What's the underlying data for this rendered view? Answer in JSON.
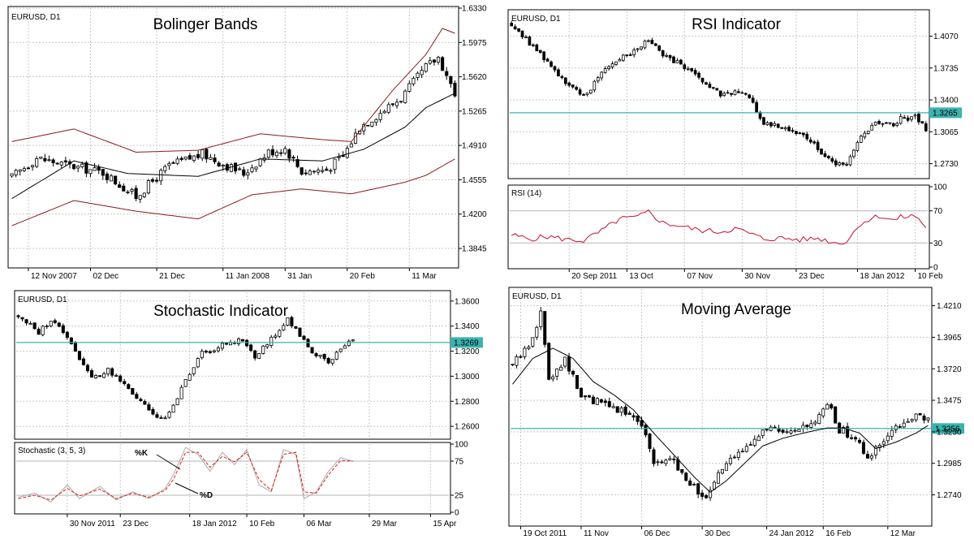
{
  "chart_data": [
    {
      "type": "candlestick",
      "title": "Bolinger Bands",
      "symbol": "EURUSD, D1",
      "y_ticks": [
        "1.6330",
        "1.5975",
        "1.5620",
        "1.5265",
        "1.4910",
        "1.4555",
        "1.4200",
        "1.3845"
      ],
      "ylim": [
        1.366,
        1.633
      ],
      "x_ticks": [
        "12 Nov 2007",
        "02 Dec",
        "21 Dec",
        "11 Jan 2008",
        "31 Jan",
        "20 Feb",
        "11 Mar"
      ],
      "x_tick_index": [
        4,
        19,
        35,
        51,
        66,
        81,
        96
      ],
      "n_bars": 108,
      "close_anchors": [
        [
          0,
          1.458
        ],
        [
          6,
          1.478
        ],
        [
          14,
          1.47
        ],
        [
          22,
          1.463
        ],
        [
          30,
          1.438
        ],
        [
          38,
          1.47
        ],
        [
          46,
          1.482
        ],
        [
          52,
          1.47
        ],
        [
          56,
          1.462
        ],
        [
          62,
          1.484
        ],
        [
          66,
          1.488
        ],
        [
          70,
          1.464
        ],
        [
          76,
          1.466
        ],
        [
          80,
          1.48
        ],
        [
          84,
          1.51
        ],
        [
          88,
          1.522
        ],
        [
          94,
          1.54
        ],
        [
          100,
          1.572
        ],
        [
          103,
          1.582
        ],
        [
          107,
          1.545
        ]
      ],
      "middle_band": [
        [
          0,
          1.436
        ],
        [
          15,
          1.475
        ],
        [
          28,
          1.462
        ],
        [
          45,
          1.459
        ],
        [
          60,
          1.477
        ],
        [
          75,
          1.475
        ],
        [
          85,
          1.487
        ],
        [
          95,
          1.51
        ],
        [
          100,
          1.53
        ],
        [
          107,
          1.545
        ]
      ],
      "upper_band": [
        [
          0,
          1.495
        ],
        [
          15,
          1.508
        ],
        [
          30,
          1.484
        ],
        [
          45,
          1.486
        ],
        [
          60,
          1.503
        ],
        [
          75,
          1.497
        ],
        [
          82,
          1.495
        ],
        [
          92,
          1.548
        ],
        [
          100,
          1.585
        ],
        [
          104,
          1.612
        ],
        [
          107,
          1.607
        ]
      ],
      "lower_band": [
        [
          0,
          1.408
        ],
        [
          15,
          1.434
        ],
        [
          30,
          1.423
        ],
        [
          45,
          1.415
        ],
        [
          58,
          1.44
        ],
        [
          70,
          1.446
        ],
        [
          82,
          1.441
        ],
        [
          95,
          1.453
        ],
        [
          100,
          1.46
        ],
        [
          107,
          1.477
        ]
      ]
    },
    {
      "type": "candlestick",
      "title": "RSI Indicator",
      "symbol": "EURUSD, D1",
      "y_ticks": [
        "1.4070",
        "1.3735",
        "1.3400",
        "1.3065",
        "1.2730"
      ],
      "ylim": [
        1.259,
        1.433
      ],
      "current_price": "1.3265",
      "x_ticks": [
        "20 Sep 2011",
        "13 Oct",
        "07 Nov",
        "30 Nov",
        "23 Dec",
        "18 Jan 2012",
        "10 Feb"
      ],
      "x_tick_index": [
        16,
        32,
        48,
        64,
        79,
        96,
        112
      ],
      "n_bars": 116,
      "close_anchors": [
        [
          0,
          1.42
        ],
        [
          5,
          1.4
        ],
        [
          10,
          1.38
        ],
        [
          16,
          1.355
        ],
        [
          20,
          1.342
        ],
        [
          25,
          1.37
        ],
        [
          30,
          1.385
        ],
        [
          35,
          1.392
        ],
        [
          38,
          1.405
        ],
        [
          42,
          1.385
        ],
        [
          46,
          1.38
        ],
        [
          52,
          1.362
        ],
        [
          58,
          1.345
        ],
        [
          62,
          1.348
        ],
        [
          66,
          1.344
        ],
        [
          70,
          1.315
        ],
        [
          75,
          1.312
        ],
        [
          80,
          1.305
        ],
        [
          85,
          1.29
        ],
        [
          90,
          1.27
        ],
        [
          93,
          1.275
        ],
        [
          97,
          1.3
        ],
        [
          102,
          1.318
        ],
        [
          106,
          1.312
        ],
        [
          108,
          1.32
        ],
        [
          112,
          1.322
        ],
        [
          115,
          1.31
        ]
      ],
      "rsi": {
        "label": "RSI (14)",
        "y_ticks": [
          "100",
          "70",
          "30",
          "0"
        ],
        "levels": [
          70,
          30
        ],
        "series": [
          [
            0,
            40
          ],
          [
            5,
            35
          ],
          [
            10,
            38
          ],
          [
            16,
            34
          ],
          [
            20,
            33
          ],
          [
            25,
            45
          ],
          [
            30,
            60
          ],
          [
            35,
            62
          ],
          [
            38,
            69
          ],
          [
            42,
            55
          ],
          [
            46,
            52
          ],
          [
            52,
            46
          ],
          [
            58,
            44
          ],
          [
            62,
            48
          ],
          [
            66,
            42
          ],
          [
            70,
            35
          ],
          [
            75,
            36
          ],
          [
            80,
            34
          ],
          [
            85,
            36
          ],
          [
            90,
            30
          ],
          [
            93,
            32
          ],
          [
            97,
            55
          ],
          [
            102,
            64
          ],
          [
            106,
            58
          ],
          [
            108,
            62
          ],
          [
            112,
            64
          ],
          [
            115,
            50
          ]
        ]
      }
    },
    {
      "type": "candlestick",
      "title": "Stochastic Indicator",
      "symbol": "EURUSD, D1",
      "y_ticks": [
        "1.3600",
        "1.3400",
        "1.3200",
        "1.3000",
        "1.2800",
        "1.2600"
      ],
      "ylim": [
        1.251,
        1.367
      ],
      "current_price": "1.3269",
      "x_ticks": [
        "30 Nov 2011",
        "23 Dec",
        "18 Jan 2012",
        "10 Feb",
        "06 Mar",
        "29 Mar",
        "15 Apr"
      ],
      "x_tick_index": [
        12,
        25,
        42,
        56,
        70,
        86,
        101
      ],
      "n_bars": 106,
      "last_bar_index": 82,
      "close_anchors": [
        [
          0,
          1.348
        ],
        [
          5,
          1.335
        ],
        [
          8,
          1.345
        ],
        [
          12,
          1.332
        ],
        [
          15,
          1.315
        ],
        [
          18,
          1.298
        ],
        [
          22,
          1.305
        ],
        [
          27,
          1.29
        ],
        [
          32,
          1.272
        ],
        [
          36,
          1.265
        ],
        [
          40,
          1.29
        ],
        [
          45,
          1.318
        ],
        [
          50,
          1.325
        ],
        [
          55,
          1.33
        ],
        [
          58,
          1.315
        ],
        [
          62,
          1.33
        ],
        [
          66,
          1.345
        ],
        [
          68,
          1.338
        ],
        [
          72,
          1.32
        ],
        [
          76,
          1.31
        ],
        [
          80,
          1.325
        ],
        [
          82,
          1.328
        ]
      ],
      "stochastic": {
        "label": "Stochastic (3, 5, 3)",
        "y_ticks": [
          "100",
          "75",
          "25",
          "0"
        ],
        "levels": [
          75,
          25
        ],
        "annotations": [
          "%K",
          "%D"
        ],
        "k_series": [
          [
            0,
            22
          ],
          [
            4,
            28
          ],
          [
            8,
            15
          ],
          [
            12,
            40
          ],
          [
            15,
            20
          ],
          [
            20,
            38
          ],
          [
            24,
            18
          ],
          [
            28,
            30
          ],
          [
            32,
            20
          ],
          [
            36,
            35
          ],
          [
            38,
            55
          ],
          [
            41,
            95
          ],
          [
            44,
            85
          ],
          [
            47,
            60
          ],
          [
            50,
            88
          ],
          [
            53,
            70
          ],
          [
            56,
            92
          ],
          [
            59,
            40
          ],
          [
            62,
            30
          ],
          [
            65,
            92
          ],
          [
            68,
            85
          ],
          [
            70,
            20
          ],
          [
            73,
            30
          ],
          [
            76,
            60
          ],
          [
            79,
            80
          ],
          [
            82,
            75
          ]
        ],
        "d_series": [
          [
            0,
            20
          ],
          [
            4,
            25
          ],
          [
            8,
            18
          ],
          [
            12,
            35
          ],
          [
            15,
            24
          ],
          [
            20,
            34
          ],
          [
            24,
            20
          ],
          [
            28,
            28
          ],
          [
            32,
            22
          ],
          [
            36,
            32
          ],
          [
            38,
            48
          ],
          [
            41,
            88
          ],
          [
            44,
            88
          ],
          [
            47,
            66
          ],
          [
            50,
            82
          ],
          [
            53,
            74
          ],
          [
            56,
            88
          ],
          [
            59,
            48
          ],
          [
            62,
            32
          ],
          [
            65,
            85
          ],
          [
            68,
            88
          ],
          [
            70,
            30
          ],
          [
            73,
            28
          ],
          [
            76,
            55
          ],
          [
            79,
            76
          ],
          [
            82,
            75
          ]
        ]
      }
    },
    {
      "type": "candlestick",
      "title": "Moving Average",
      "symbol": "EURUSD, D1",
      "y_ticks": [
        "1.4210",
        "1.3965",
        "1.3720",
        "1.3475",
        "1.3230",
        "1.2985",
        "1.2740"
      ],
      "ylim": [
        1.251,
        1.434
      ],
      "current_price": "1.3256",
      "x_ticks": [
        "19 Oct 2011",
        "11 Nov",
        "06 Dec",
        "30 Dec",
        "24 Jan 2012",
        "16 Feb",
        "12 Mar"
      ],
      "x_tick_index": [
        2,
        17,
        32,
        47,
        63,
        77,
        93
      ],
      "n_bars": 104,
      "close_anchors": [
        [
          0,
          1.375
        ],
        [
          4,
          1.39
        ],
        [
          7,
          1.415
        ],
        [
          9,
          1.365
        ],
        [
          13,
          1.38
        ],
        [
          17,
          1.35
        ],
        [
          22,
          1.345
        ],
        [
          27,
          1.34
        ],
        [
          32,
          1.33
        ],
        [
          35,
          1.3
        ],
        [
          40,
          1.3
        ],
        [
          45,
          1.28
        ],
        [
          48,
          1.27
        ],
        [
          52,
          1.295
        ],
        [
          56,
          1.305
        ],
        [
          60,
          1.32
        ],
        [
          64,
          1.325
        ],
        [
          68,
          1.32
        ],
        [
          72,
          1.325
        ],
        [
          75,
          1.33
        ],
        [
          78,
          1.345
        ],
        [
          81,
          1.325
        ],
        [
          85,
          1.318
        ],
        [
          88,
          1.3
        ],
        [
          91,
          1.315
        ],
        [
          95,
          1.325
        ],
        [
          99,
          1.335
        ],
        [
          103,
          1.332
        ]
      ],
      "moving_average": [
        [
          0,
          1.36
        ],
        [
          5,
          1.38
        ],
        [
          10,
          1.388
        ],
        [
          15,
          1.38
        ],
        [
          20,
          1.362
        ],
        [
          25,
          1.352
        ],
        [
          30,
          1.34
        ],
        [
          35,
          1.322
        ],
        [
          40,
          1.305
        ],
        [
          45,
          1.288
        ],
        [
          49,
          1.276
        ],
        [
          53,
          1.285
        ],
        [
          58,
          1.3
        ],
        [
          62,
          1.312
        ],
        [
          67,
          1.318
        ],
        [
          72,
          1.322
        ],
        [
          78,
          1.326
        ],
        [
          82,
          1.326
        ],
        [
          86,
          1.322
        ],
        [
          90,
          1.31
        ],
        [
          95,
          1.315
        ],
        [
          100,
          1.322
        ],
        [
          103,
          1.328
        ]
      ]
    }
  ]
}
